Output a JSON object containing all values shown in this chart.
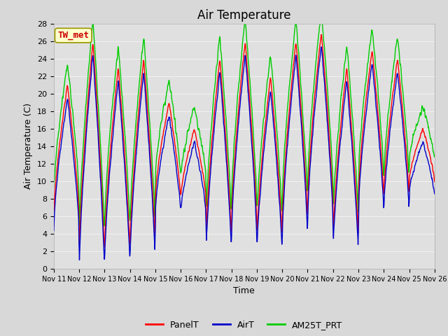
{
  "title": "Air Temperature",
  "ylabel": "Air Temperature (C)",
  "xlabel": "Time",
  "legend_label": "TW_met",
  "series_labels": [
    "PanelT",
    "AirT",
    "AM25T_PRT"
  ],
  "series_colors": [
    "#ff0000",
    "#0000cc",
    "#00cc00"
  ],
  "ylim": [
    0,
    28
  ],
  "xlim": [
    0,
    360
  ],
  "x_tick_labels": [
    "Nov 11",
    "Nov 12",
    "Nov 13",
    "Nov 14",
    "Nov 15",
    "Nov 16",
    "Nov 17",
    "Nov 18",
    "Nov 19",
    "Nov 20",
    "Nov 21",
    "Nov 22",
    "Nov 23",
    "Nov 24",
    "Nov 25",
    "Nov 26"
  ],
  "x_tick_positions": [
    0,
    24,
    48,
    72,
    96,
    120,
    144,
    168,
    192,
    216,
    240,
    264,
    288,
    312,
    336,
    360
  ],
  "background_color": "#d8d8d8",
  "plot_bg_color": "#e0e0e0",
  "grid_color": "#f0f0f0",
  "title_fontsize": 12,
  "axis_fontsize": 9,
  "tick_fontsize": 8,
  "legend_box_facecolor": "#ffffcc",
  "legend_box_edgecolor": "#999900",
  "annotation_color": "#cc0000",
  "annotation_fontsize": 9,
  "day_mins": [
    6,
    1,
    2,
    2,
    8,
    8,
    3,
    5,
    3,
    5,
    7,
    3,
    8,
    8,
    10
  ],
  "day_maxs": [
    21,
    26,
    23,
    24,
    19,
    16,
    24,
    26,
    22,
    26,
    27,
    23,
    25,
    24,
    16
  ]
}
